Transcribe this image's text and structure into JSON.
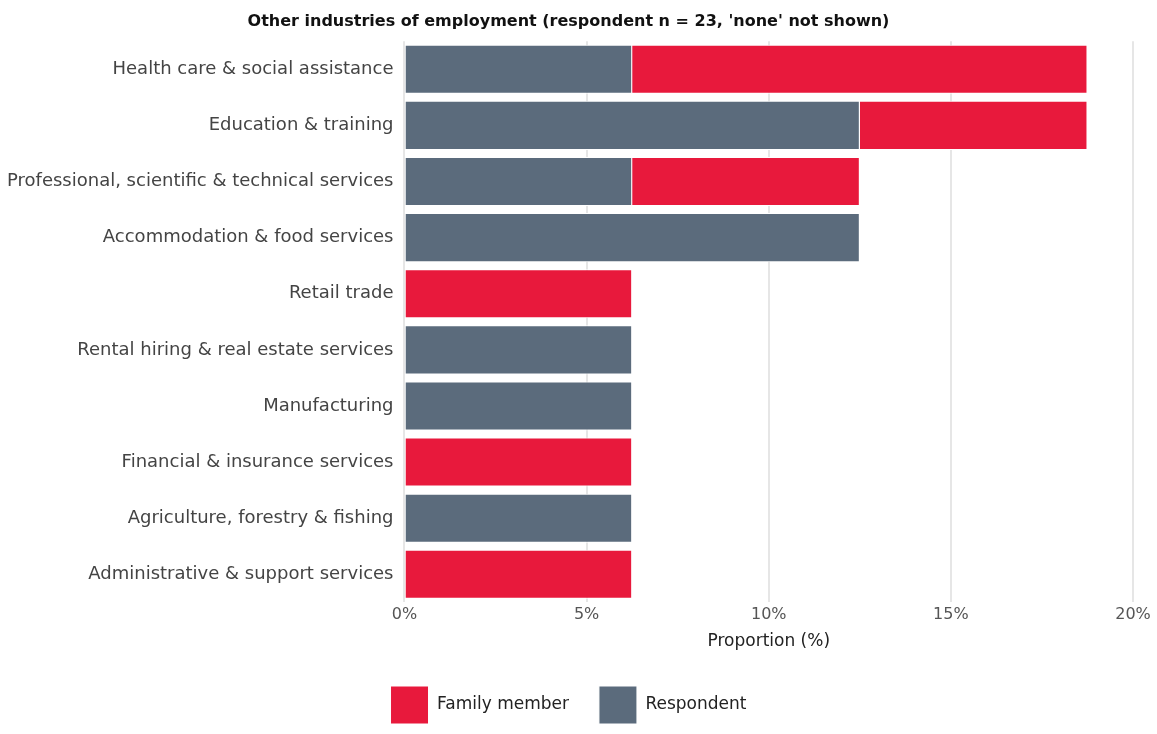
{
  "chart_data": {
    "type": "bar",
    "orientation": "horizontal",
    "stacked": true,
    "title": "Other industries of employment (respondent n = 23, 'none' not shown)",
    "xlabel": "Proportion (%)",
    "categories": [
      "Health care & social assistance",
      "Education & training",
      "Professional, scientific & technical services",
      "Accommodation & food services",
      "Retail trade",
      "Rental hiring & real estate services",
      "Manufacturing",
      "Financial & insurance services",
      "Agriculture, forestry & fishing",
      "Administrative & support services"
    ],
    "series": [
      {
        "name": "Respondent",
        "color": "#5b6b7c",
        "values": [
          6.25,
          12.5,
          6.25,
          12.5,
          null,
          6.25,
          6.25,
          null,
          6.25,
          null
        ]
      },
      {
        "name": "Family member",
        "color": "#e8193c",
        "values": [
          12.5,
          6.25,
          6.25,
          null,
          6.25,
          null,
          null,
          6.25,
          null,
          6.25
        ]
      }
    ],
    "xlim": [
      0,
      20
    ],
    "xticks": [
      {
        "value": 0,
        "label": "0%"
      },
      {
        "value": 5,
        "label": "5%"
      },
      {
        "value": 10,
        "label": "10%"
      },
      {
        "value": 15,
        "label": "15%"
      },
      {
        "value": 20,
        "label": "20%"
      }
    ],
    "grid": "x",
    "legend": "bottom"
  }
}
